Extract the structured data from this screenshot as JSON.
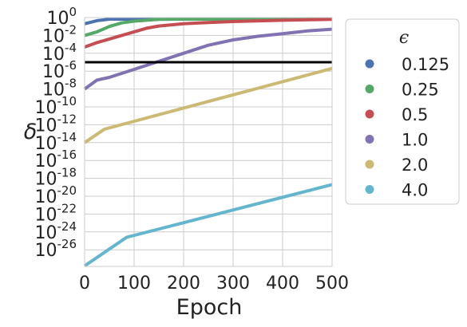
{
  "chart_data": {
    "type": "line",
    "xlabel": "Epoch",
    "ylabel": "δ",
    "xscale": "linear",
    "yscale": "log",
    "xlim": [
      0,
      500
    ],
    "ylim_exp": [
      -28,
      0
    ],
    "xticks": [
      "0",
      "100",
      "200",
      "300",
      "400",
      "500"
    ],
    "yticks": [
      {
        "base": "10",
        "exp": "0"
      },
      {
        "base": "10",
        "exp": "-2"
      },
      {
        "base": "10",
        "exp": "-4"
      },
      {
        "base": "10",
        "exp": "-6"
      },
      {
        "base": "10",
        "exp": "-8"
      },
      {
        "base": "10",
        "exp": "-10"
      },
      {
        "base": "10",
        "exp": "-12"
      },
      {
        "base": "10",
        "exp": "-14"
      },
      {
        "base": "10",
        "exp": "-16"
      },
      {
        "base": "10",
        "exp": "-18"
      },
      {
        "base": "10",
        "exp": "-20"
      },
      {
        "base": "10",
        "exp": "-22"
      },
      {
        "base": "10",
        "exp": "-24"
      },
      {
        "base": "10",
        "exp": "-26"
      }
    ],
    "grid": true,
    "legend": {
      "title": "ϵ",
      "placement": "outside right"
    },
    "reference_line": {
      "y_exp": -5,
      "color": "#000000"
    },
    "series": [
      {
        "name": "0.125",
        "color": "#4c72b0",
        "x": [
          0,
          25,
          50,
          100,
          150,
          500
        ],
        "y_exp": [
          -0.7,
          -0.35,
          -0.05,
          0,
          0,
          0
        ]
      },
      {
        "name": "0.25",
        "color": "#55a868",
        "x": [
          0,
          25,
          50,
          75,
          100,
          150,
          200,
          500
        ],
        "y_exp": [
          -2.0,
          -1.6,
          -1.0,
          -0.6,
          -0.4,
          -0.2,
          -0.1,
          -0.05
        ]
      },
      {
        "name": "0.5",
        "color": "#c44e52",
        "x": [
          0,
          25,
          50,
          75,
          100,
          125,
          150,
          200,
          250,
          300,
          400,
          500
        ],
        "y_exp": [
          -3.3,
          -2.8,
          -2.4,
          -2.0,
          -1.6,
          -1.2,
          -0.95,
          -0.7,
          -0.55,
          -0.45,
          -0.3,
          -0.2
        ]
      },
      {
        "name": "1.0",
        "color": "#8172b2",
        "x": [
          0,
          25,
          50,
          100,
          150,
          200,
          250,
          300,
          350,
          400,
          450,
          500
        ],
        "y_exp": [
          -8.0,
          -7.0,
          -6.7,
          -5.8,
          -4.9,
          -4.0,
          -3.1,
          -2.5,
          -2.1,
          -1.8,
          -1.5,
          -1.3
        ]
      },
      {
        "name": "2.0",
        "color": "#ccb974",
        "x": [
          0,
          40,
          500
        ],
        "y_exp": [
          -14.0,
          -12.5,
          -5.7
        ]
      },
      {
        "name": "4.0",
        "color": "#64b5cd",
        "x": [
          0,
          85,
          500
        ],
        "y_exp": [
          -27.8,
          -24.6,
          -18.7
        ]
      }
    ]
  }
}
